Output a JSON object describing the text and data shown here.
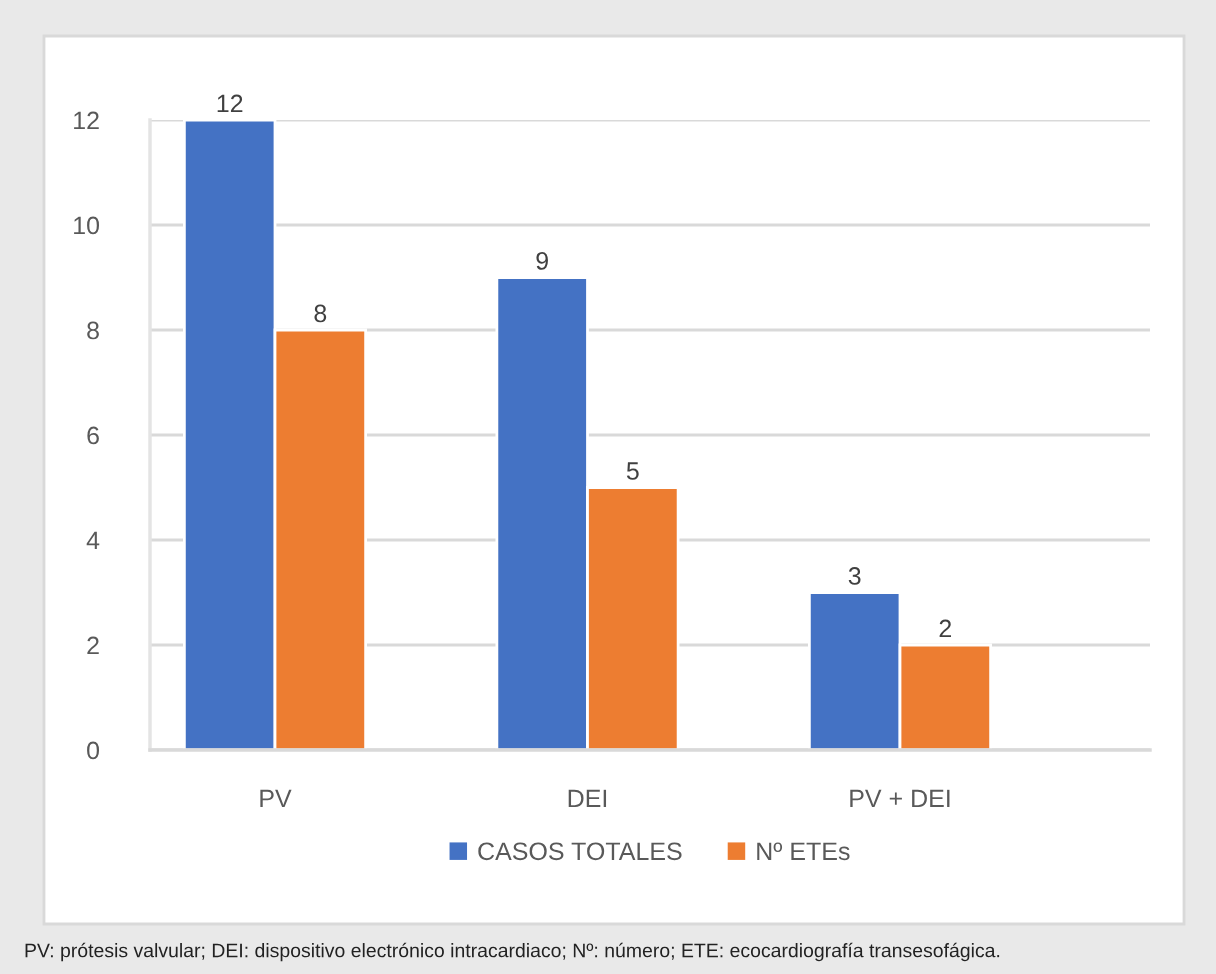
{
  "chart_data": {
    "type": "bar",
    "categories": [
      "PV",
      "DEI",
      "PV + DEI"
    ],
    "series": [
      {
        "name": "CASOS TOTALES",
        "color": "#4472c4",
        "values": [
          12,
          9,
          3
        ]
      },
      {
        "name": "Nº ETEs",
        "color": "#ed7d31",
        "values": [
          8,
          5,
          2
        ]
      }
    ],
    "ylim": [
      0,
      12
    ],
    "yticks": [
      0,
      2,
      4,
      6,
      8,
      10,
      12
    ],
    "grid": "y",
    "legend": "bottom",
    "data_labels": true,
    "annotations": [
      "PV: prótesis valvular; DEI: dispositivo electrónico intracardiaco; Nº: número; ETE: ecocardiografía transesofágica."
    ]
  }
}
